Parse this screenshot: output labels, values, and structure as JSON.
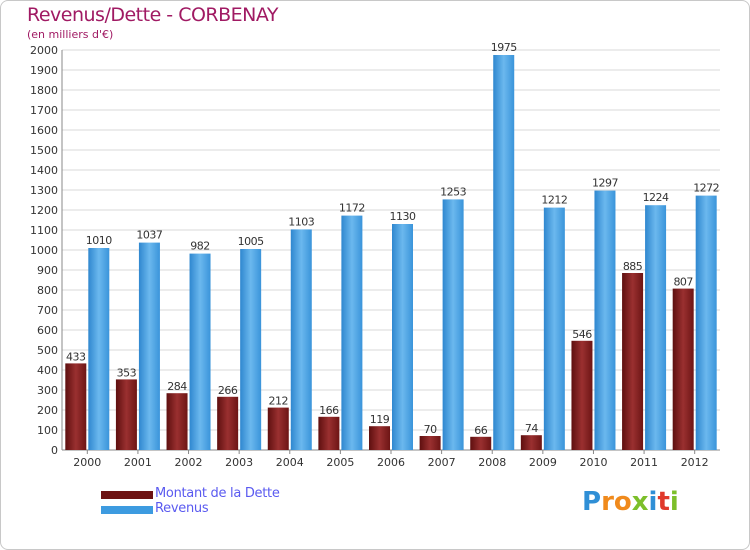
{
  "title": "Revenus/Dette - CORBENAY",
  "subtitle": "(en milliers d'€)",
  "legend": {
    "debt_label": "Montant de la Dette",
    "revenue_label": "Revenus"
  },
  "logo": {
    "text": "Proxiti"
  },
  "colors": {
    "debt": "#7a1a1a",
    "debt_light": "#a33a3a",
    "revenue": "#3d9be0",
    "revenue_light": "#64b4ec",
    "title": "#a01a63",
    "legend_text": "#5a5af0",
    "grid": "#d8d8d8"
  },
  "chart_data": {
    "type": "bar",
    "categories": [
      "2000",
      "2001",
      "2002",
      "2003",
      "2004",
      "2005",
      "2006",
      "2007",
      "2008",
      "2009",
      "2010",
      "2011",
      "2012"
    ],
    "series": [
      {
        "name": "Montant de la Dette",
        "values": [
          433,
          353,
          284,
          266,
          212,
          166,
          119,
          70,
          66,
          74,
          546,
          885,
          807
        ]
      },
      {
        "name": "Revenus",
        "values": [
          1010,
          1037,
          982,
          1005,
          1103,
          1172,
          1130,
          1253,
          1975,
          1212,
          1297,
          1224,
          1272
        ]
      }
    ],
    "ylim": [
      0,
      2000
    ],
    "yticks": [
      0,
      100,
      200,
      300,
      400,
      500,
      600,
      700,
      800,
      900,
      1000,
      1100,
      1200,
      1300,
      1400,
      1500,
      1600,
      1700,
      1800,
      1900,
      2000
    ],
    "grid": true,
    "legend_position": "bottom-left"
  }
}
